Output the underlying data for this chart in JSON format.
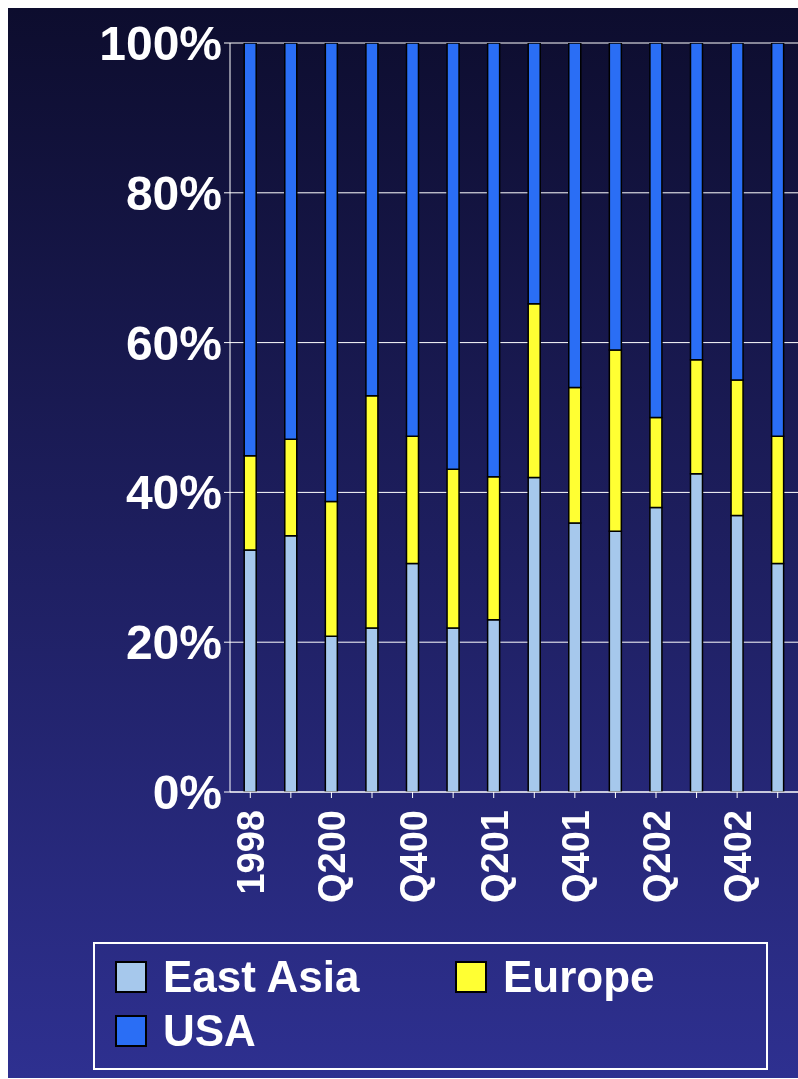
{
  "chart_data": {
    "type": "bar",
    "stacked": true,
    "categories": [
      "1998",
      null,
      "Q200",
      null,
      "Q400",
      null,
      "Q201",
      null,
      "Q401",
      null,
      "Q202",
      null,
      "Q402",
      null
    ],
    "series": [
      {
        "name": "East Asia",
        "color": "#a6c8ec",
        "values": [
          32.3,
          34.2,
          20.8,
          21.9,
          30.5,
          21.9,
          23.0,
          42.0,
          35.9,
          34.8,
          38.0,
          42.5,
          36.9,
          30.5
        ]
      },
      {
        "name": "Europe",
        "color": "#ffff33",
        "values": [
          12.6,
          12.9,
          18.0,
          31.0,
          17.0,
          21.2,
          19.1,
          23.2,
          18.1,
          24.2,
          12.0,
          15.2,
          18.1,
          17.0
        ]
      },
      {
        "name": "USA",
        "color": "#2a6ef5",
        "values": [
          55.1,
          52.9,
          61.2,
          47.1,
          52.5,
          56.9,
          57.9,
          34.8,
          46.0,
          41.0,
          50.0,
          42.3,
          45.0,
          52.5
        ]
      }
    ],
    "ylim": [
      0,
      100
    ],
    "yticks": [
      {
        "value": 0,
        "label": "0%"
      },
      {
        "value": 20,
        "label": "20%"
      },
      {
        "value": 40,
        "label": "40%"
      },
      {
        "value": 60,
        "label": "60%"
      },
      {
        "value": 80,
        "label": "80%"
      },
      {
        "value": 100,
        "label": "100%"
      }
    ],
    "grid": "y",
    "legend": "bottom"
  }
}
